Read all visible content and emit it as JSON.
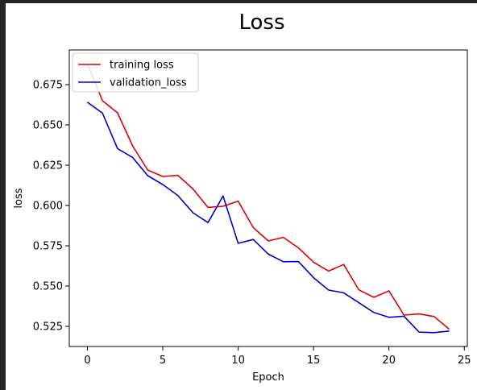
{
  "chart_data": {
    "type": "line",
    "title": "Loss",
    "xlabel": "Epoch",
    "ylabel": "loss",
    "xlim": [
      -1.2,
      25.2
    ],
    "ylim": [
      0.5125,
      0.6965
    ],
    "xticks": [
      0,
      5,
      10,
      15,
      20,
      25
    ],
    "xtick_labels": [
      "0",
      "5",
      "10",
      "15",
      "20",
      "25"
    ],
    "yticks": [
      0.525,
      0.55,
      0.575,
      0.6,
      0.625,
      0.65,
      0.675
    ],
    "ytick_labels": [
      "0.525",
      "0.550",
      "0.575",
      "0.600",
      "0.625",
      "0.650",
      "0.675"
    ],
    "grid": false,
    "legend_position": "top-left",
    "x": [
      0,
      1,
      2,
      3,
      4,
      5,
      6,
      7,
      8,
      9,
      10,
      11,
      12,
      13,
      14,
      15,
      16,
      17,
      18,
      19,
      20,
      21,
      22,
      23,
      24
    ],
    "series": [
      {
        "name": "training loss",
        "color": "#dd0000",
        "values": [
          0.688,
          0.665,
          0.6575,
          0.637,
          0.622,
          0.618,
          0.6187,
          0.6103,
          0.5988,
          0.5995,
          0.6027,
          0.5863,
          0.578,
          0.5802,
          0.5737,
          0.5648,
          0.5593,
          0.5634,
          0.5477,
          0.543,
          0.547,
          0.532,
          0.5327,
          0.5311,
          0.5232
        ]
      },
      {
        "name": "validation_loss",
        "color": "#0000cc",
        "values": [
          0.6641,
          0.6573,
          0.6353,
          0.6298,
          0.6185,
          0.613,
          0.6062,
          0.5955,
          0.5894,
          0.6059,
          0.5765,
          0.5789,
          0.5698,
          0.5651,
          0.5652,
          0.5552,
          0.5475,
          0.5458,
          0.5397,
          0.5336,
          0.5306,
          0.5313,
          0.5214,
          0.5211,
          0.5221
        ]
      }
    ]
  }
}
